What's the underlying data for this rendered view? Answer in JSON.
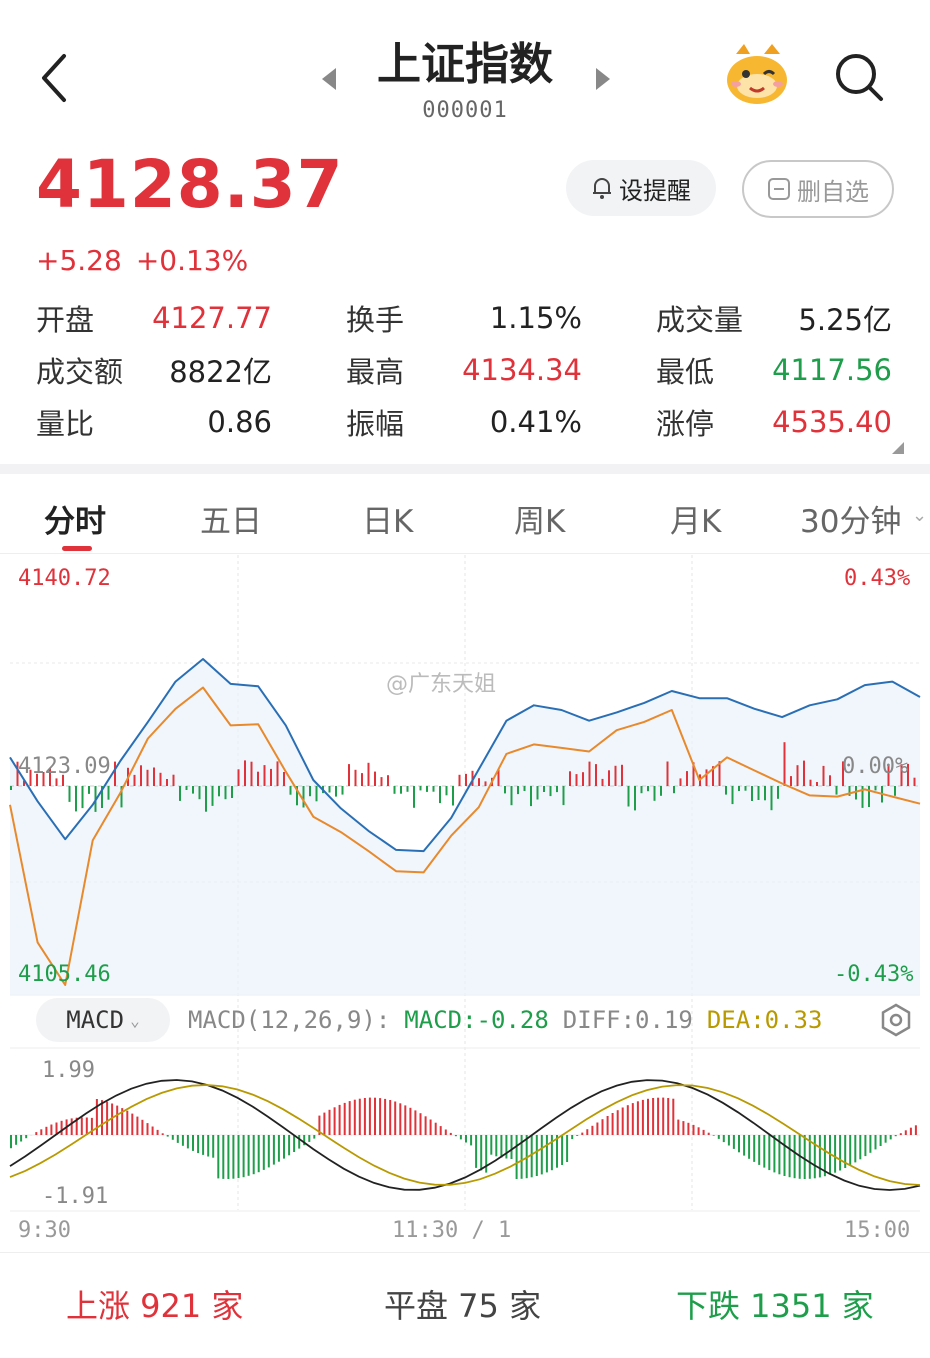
{
  "header": {
    "title": "上证指数",
    "code": "000001"
  },
  "quote": {
    "price": "4128.37",
    "change": "+5.28",
    "change_pct": "+0.13%",
    "alert_label": "设提醒",
    "unfav_label": "删自选"
  },
  "stats": [
    [
      {
        "label": "开盘",
        "value": "4127.77",
        "color": "red"
      },
      {
        "label": "换手",
        "value": "1.15%",
        "color": "dark"
      },
      {
        "label": "成交量",
        "value": "5.25亿",
        "color": "dark"
      }
    ],
    [
      {
        "label": "成交额",
        "value": "8822亿",
        "color": "dark"
      },
      {
        "label": "最高",
        "value": "4134.34",
        "color": "red"
      },
      {
        "label": "最低",
        "value": "4117.56",
        "color": "green"
      }
    ],
    [
      {
        "label": "量比",
        "value": "0.86",
        "color": "dark"
      },
      {
        "label": "振幅",
        "value": "0.41%",
        "color": "dark"
      },
      {
        "label": "涨停",
        "value": "4535.40",
        "color": "red"
      }
    ]
  ],
  "tabs": [
    "分时",
    "五日",
    "日K",
    "周K",
    "月K",
    "30分钟"
  ],
  "active_tab": "分时",
  "chart": {
    "price_high": "4140.72",
    "price_low": "4105.46",
    "pct_high": "0.43%",
    "pct_low": "-0.43%",
    "prev_close_label": "4123.09",
    "zero_pct": "0.00%",
    "watermark": "@广东天姐"
  },
  "macd": {
    "selector": "MACD",
    "params": "MACD(12,26,9):",
    "macd_value": "MACD:-0.28",
    "diff_value": "DIFF:0.19",
    "dea_value": "DEA:0.33",
    "axis_high": "1.99",
    "axis_low": "-1.91"
  },
  "time_axis": {
    "start": "9:30",
    "mid": "11:30 / 1",
    "end": "15:00"
  },
  "footer": {
    "up": "上涨 921 家",
    "flat": "平盘 75 家",
    "down": "下跌 1351 家"
  },
  "colors": {
    "up": "#e0323a",
    "down": "#1e9e4a",
    "price_line": "#2a6fb5",
    "avg_line": "#e8892c"
  },
  "chart_data": {
    "type": "line",
    "title": "",
    "xlabel": "",
    "ylabel": "",
    "x_ticks": [
      "9:30",
      "11:30 / 1",
      "15:00"
    ],
    "ylim": [
      4105.46,
      4140.72
    ],
    "prev_close": 4123.09,
    "series": [
      {
        "values": [
          4125.5,
          4121.8,
          4118.6,
          4121.5,
          4125.2,
          4128.5,
          4131.9,
          4133.8,
          4131.7,
          4131.5,
          4128.2,
          4123.6,
          4121.2,
          4119.3,
          4117.7,
          4117.6,
          4120.4,
          4124.5,
          4128.6,
          4129.9,
          4129.5,
          4128.6,
          4129.3,
          4130.1,
          4131.1,
          4130.5,
          4130.5,
          4129.6,
          4128.9,
          4129.9,
          4130.4,
          4131.6,
          4131.9,
          4130.6
        ]
      },
      {
        "values": [
          4121.5,
          4109.9,
          4106.3,
          4118.5,
          4122.5,
          4127.1,
          4129.6,
          4131.4,
          4128.2,
          4128.3,
          4124.3,
          4120.5,
          4119.2,
          4117.6,
          4115.9,
          4115.8,
          4118.9,
          4121.3,
          4125.8,
          4126.6,
          4126.3,
          4126.0,
          4127.8,
          4128.5,
          4129.5,
          4123.6,
          4125.5,
          4124.4,
          4123.3,
          4122.3,
          4122.2,
          4122.8,
          4122.2,
          4121.6
        ]
      }
    ]
  }
}
